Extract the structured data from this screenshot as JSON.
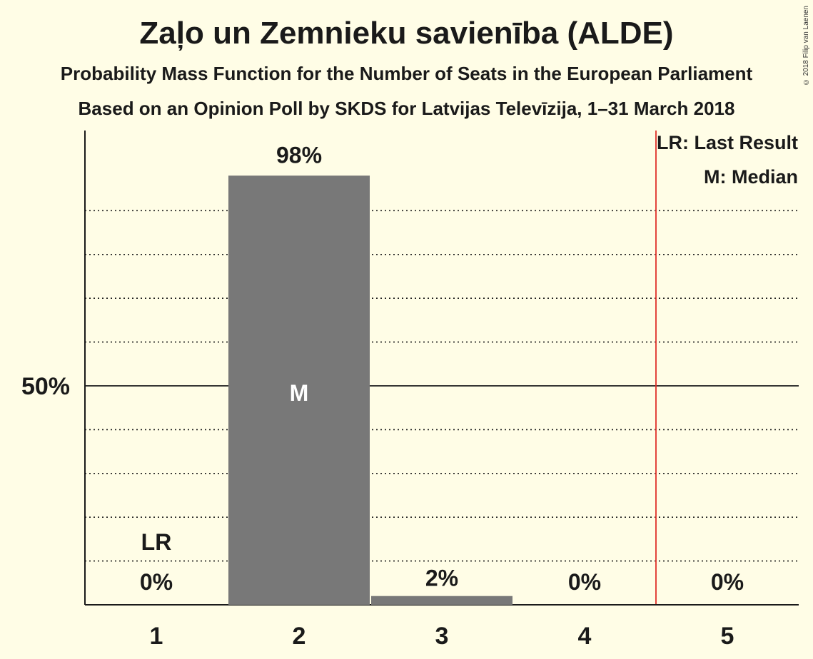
{
  "header": {
    "title": "Zaļo un Zemnieku savienība (ALDE)",
    "subtitle": "Probability Mass Function for the Number of Seats in the European Parliament",
    "subtitle2": "Based on an Opinion Poll by SKDS for Latvijas Televīzija, 1–31 March 2018",
    "copyright": "© 2018 Filip van Laenen"
  },
  "legend": {
    "last_result": "LR: Last Result",
    "median": "M: Median",
    "placement": "top-right"
  },
  "colors": {
    "background": "#fffde6",
    "bar": "#787878",
    "last_result_line": "#e0302a",
    "text": "#1a1a1a"
  },
  "chart_data": {
    "type": "bar",
    "categories": [
      "1",
      "2",
      "3",
      "4",
      "5"
    ],
    "values": [
      0,
      98,
      2,
      0,
      0
    ],
    "value_labels": [
      "0%",
      "98%",
      "2%",
      "0%",
      "0%"
    ],
    "ylim": [
      0,
      107
    ],
    "ytick_label": "50%",
    "ytick_value": 50,
    "gridlines_dotted": [
      10,
      20,
      30,
      40,
      60,
      70,
      80,
      90
    ],
    "median_category": "2",
    "median_marker": "M",
    "last_result_category": "1",
    "last_result_marker": "LR",
    "last_result_line_at": 4.5
  }
}
